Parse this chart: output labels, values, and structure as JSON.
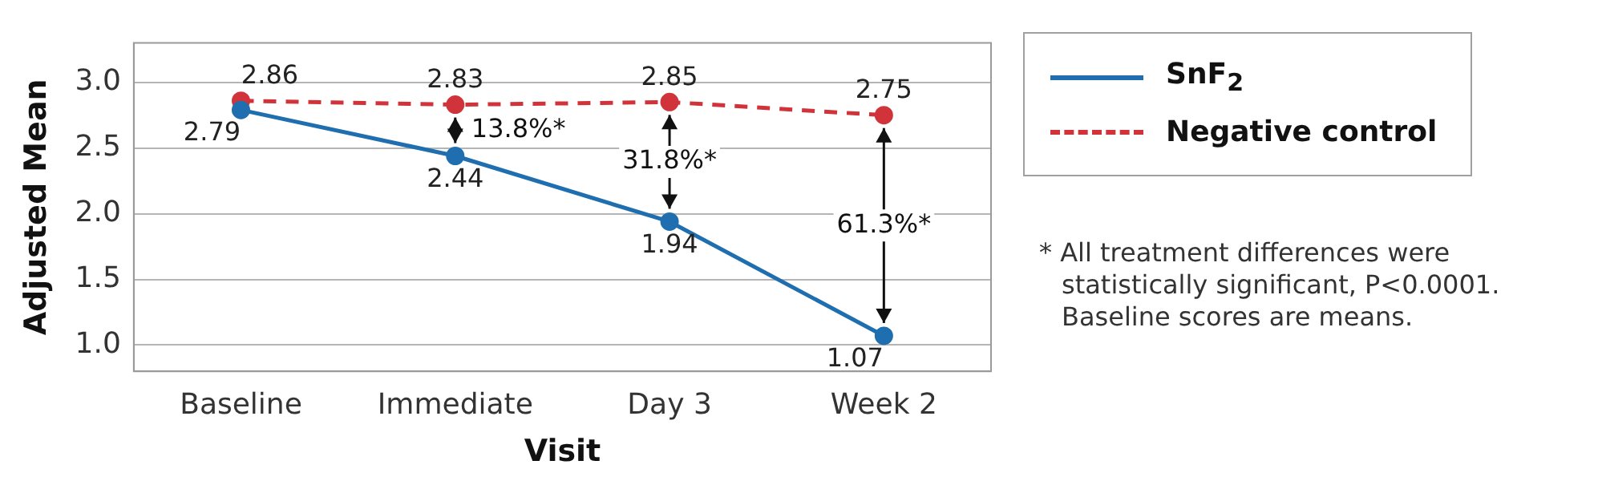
{
  "chart_data": {
    "type": "line",
    "xlabel": "Visit",
    "ylabel": "Adjusted Mean",
    "categories": [
      "Baseline",
      "Immediate",
      "Day 3",
      "Week 2"
    ],
    "series": [
      {
        "name": "SnF$_{2}$",
        "color": "#1f6fb0",
        "values": [
          2.79,
          2.44,
          1.94,
          1.07
        ],
        "line_style": "solid"
      },
      {
        "name": "Negative control",
        "color": "#d0343a",
        "values": [
          2.86,
          2.83,
          2.85,
          2.75
        ],
        "line_style": "dashed"
      }
    ],
    "ylim": [
      0.8,
      3.3
    ],
    "yticks": [
      {
        "value": 1,
        "label": "1.0"
      },
      1.5,
      {
        "value": 2,
        "label": "2.0"
      },
      2.5,
      {
        "value": 3,
        "label": "3.0"
      }
    ],
    "grid": "y",
    "legend": "right",
    "marker": "circle",
    "data_labels": true,
    "annotations": [
      "13.8%*",
      "31.8%*",
      "61.3%*",
      "* All treatment differences were statistically significant, P<0.0001. Baseline scores are means."
    ]
  }
}
